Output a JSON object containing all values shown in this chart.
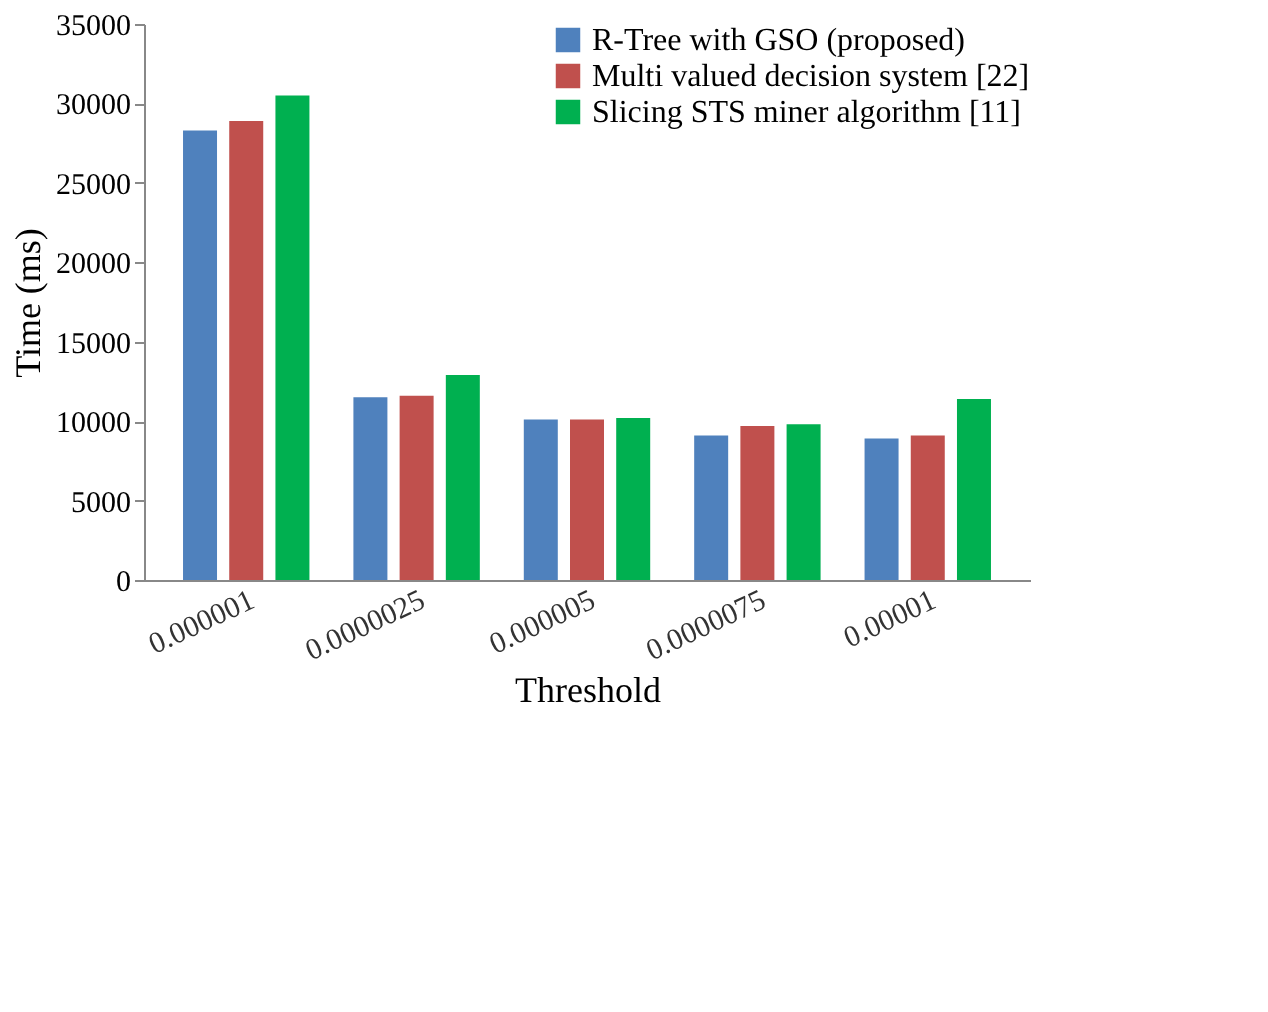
{
  "chart_data": {
    "type": "bar",
    "xlabel": "Threshold",
    "ylabel": "Time  (ms)",
    "categories": [
      "0.000001",
      "0.0000025",
      "0.000005",
      "0.0000075",
      "0.00001"
    ],
    "series": [
      {
        "name": "R-Tree with GSO (proposed)",
        "color": "#4f81bd",
        "values": [
          28300,
          11500,
          10100,
          9100,
          8900
        ]
      },
      {
        "name": "Multi valued decision system [22]",
        "color": "#c0504d",
        "values": [
          28900,
          11600,
          10100,
          9700,
          9100
        ]
      },
      {
        "name": "Slicing STS miner algorithm [11]",
        "color": "#00b050",
        "values": [
          30500,
          12900,
          10200,
          9800,
          11400
        ]
      }
    ],
    "ylim": [
      0,
      35000
    ],
    "yticks": [
      0,
      5000,
      10000,
      15000,
      20000,
      25000,
      30000,
      35000
    ],
    "grid": false,
    "legend": "top right"
  }
}
